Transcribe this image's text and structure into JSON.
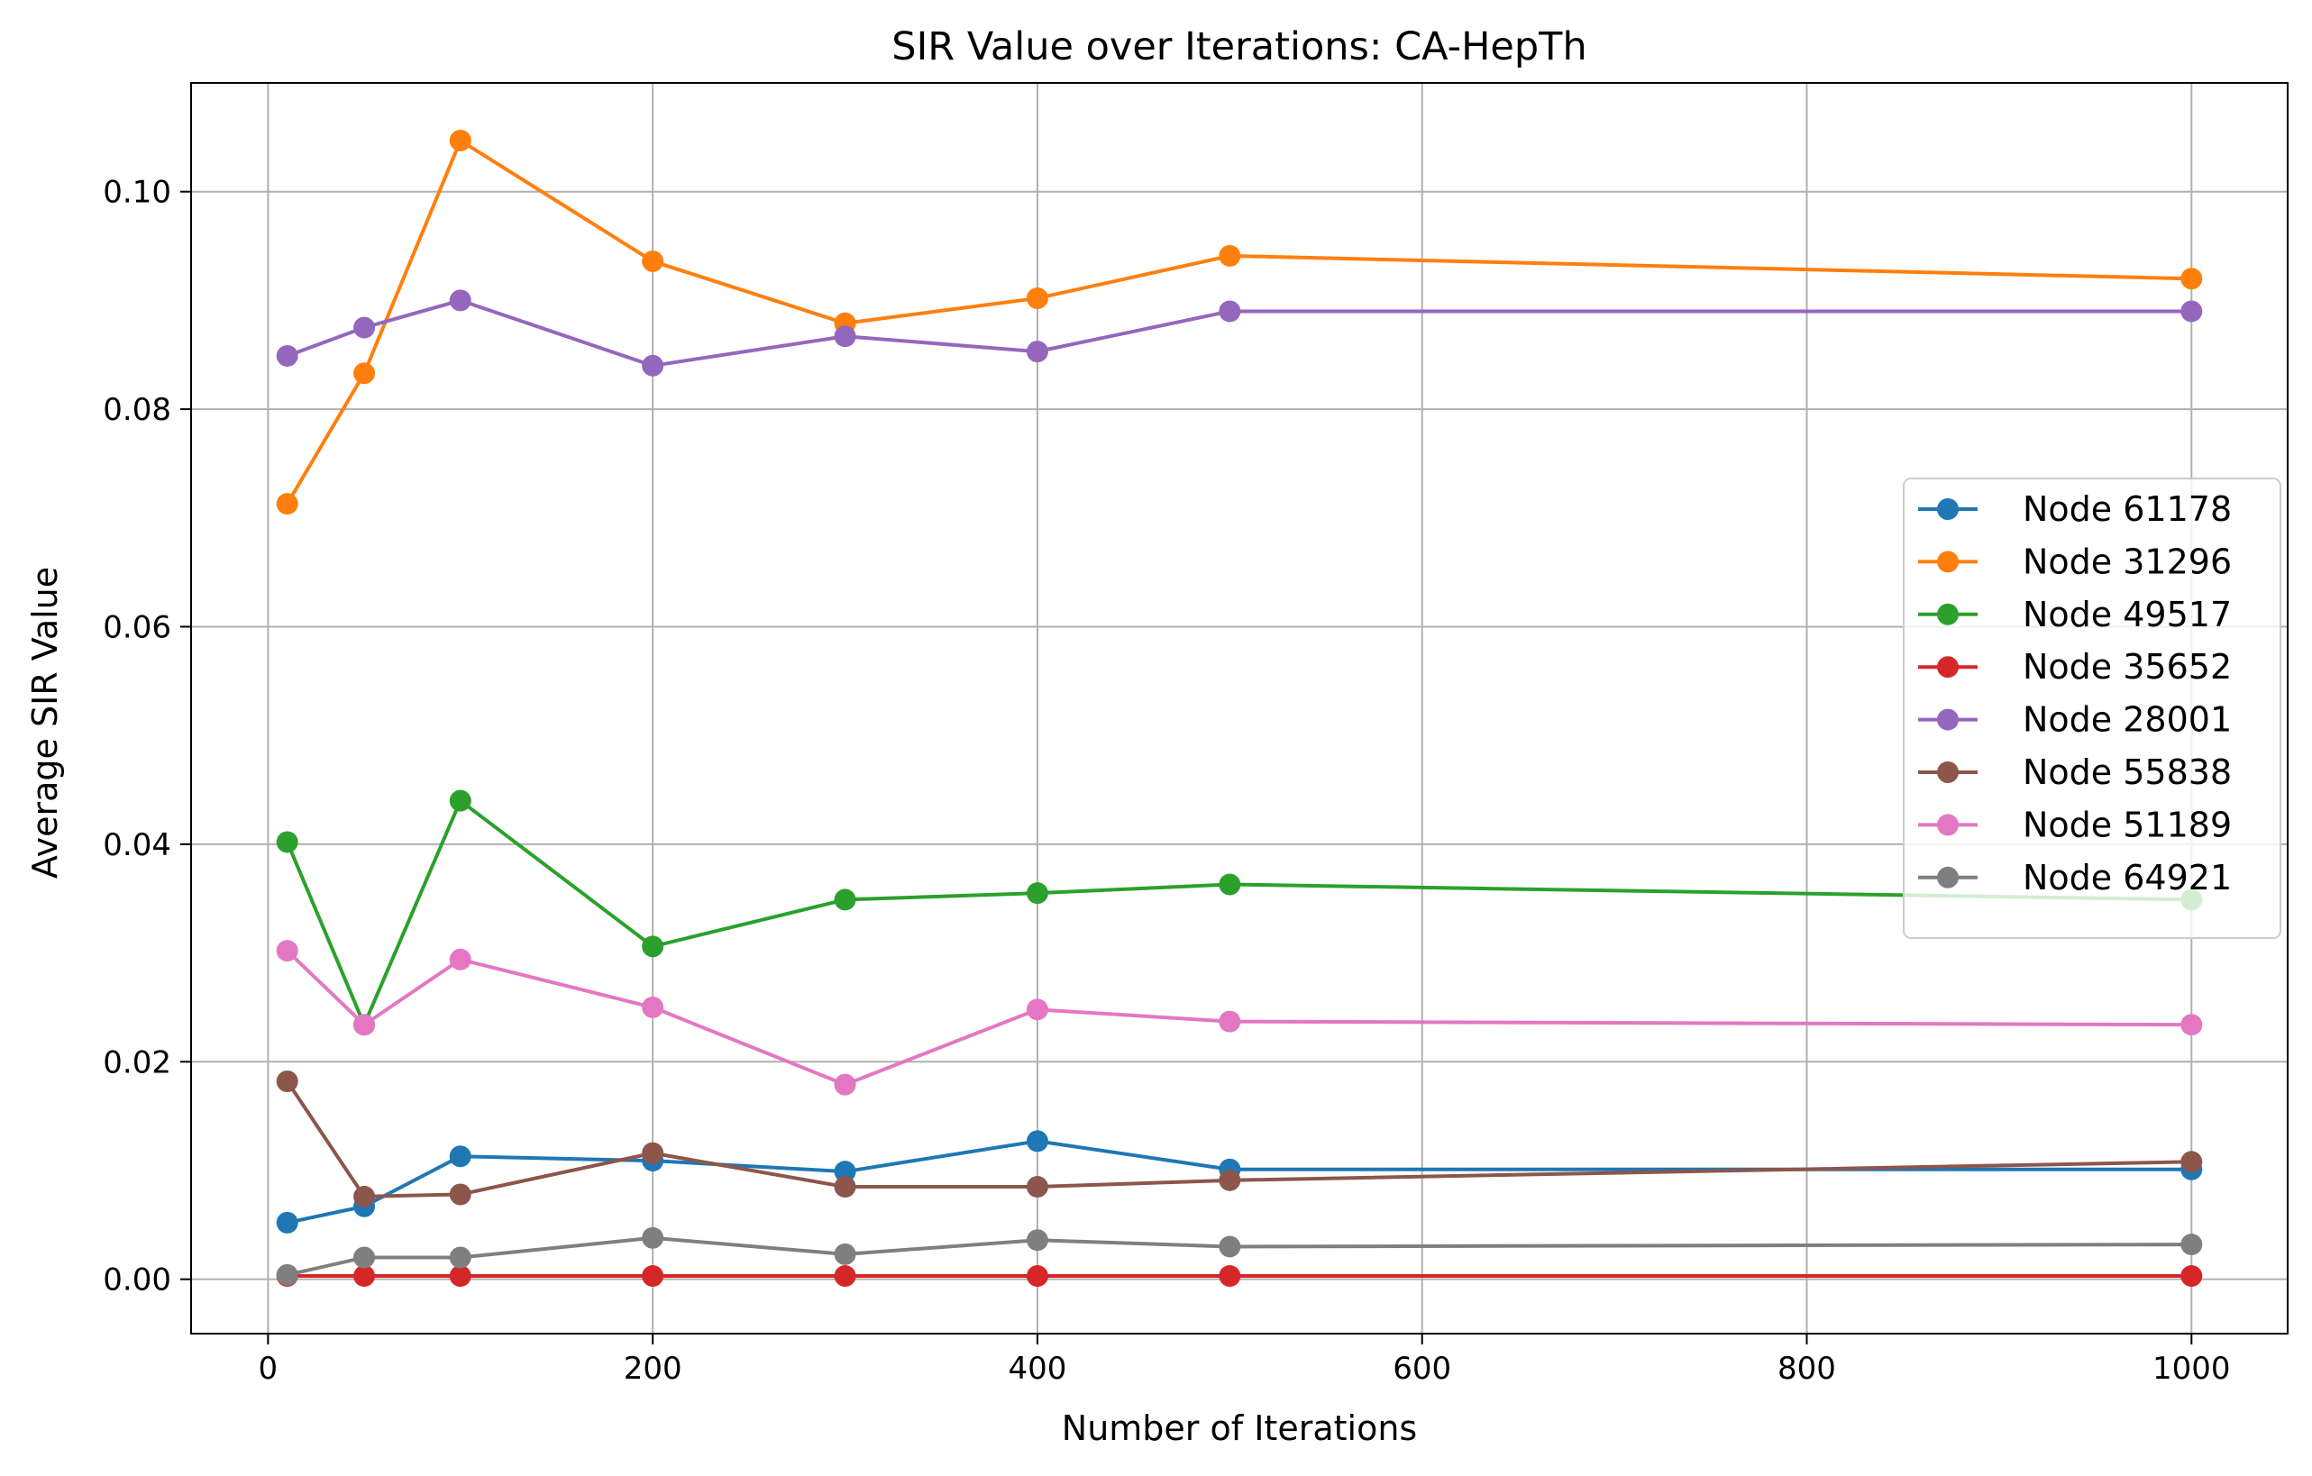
{
  "chart_data": {
    "type": "line",
    "title": "SIR Value over Iterations: CA-HepTh",
    "xlabel": "Number of Iterations",
    "ylabel": "Average SIR Value",
    "xlim": [
      -40,
      1050
    ],
    "ylim": [
      -0.005,
      0.11
    ],
    "xticks": [
      0,
      200,
      400,
      600,
      800,
      1000
    ],
    "xtick_labels": [
      "0",
      "200",
      "400",
      "600",
      "800",
      "1000"
    ],
    "yticks": [
      0.0,
      0.02,
      0.04,
      0.06,
      0.08,
      0.1
    ],
    "ytick_labels": [
      "0.00",
      "0.02",
      "0.04",
      "0.06",
      "0.08",
      "0.10"
    ],
    "grid": true,
    "legend_position": "center-right",
    "x": [
      10,
      50,
      100,
      200,
      300,
      400,
      500,
      1000
    ],
    "series": [
      {
        "name": "Node 61178",
        "color": "#1f77b4",
        "values": [
          0.0052,
          0.0067,
          0.0113,
          0.0109,
          0.0099,
          0.0127,
          0.0101,
          0.0101
        ]
      },
      {
        "name": "Node 31296",
        "color": "#ff7f0e",
        "values": [
          0.0713,
          0.0833,
          0.1047,
          0.0936,
          0.0879,
          0.0902,
          0.0941,
          0.092
        ]
      },
      {
        "name": "Node 49517",
        "color": "#2ca02c",
        "values": [
          0.0402,
          0.0234,
          0.044,
          0.0306,
          0.0349,
          0.0355,
          0.0363,
          0.0349
        ]
      },
      {
        "name": "Node 35652",
        "color": "#d62728",
        "values": [
          0.0003,
          0.0003,
          0.0003,
          0.0003,
          0.0003,
          0.0003,
          0.0003,
          0.0003
        ]
      },
      {
        "name": "Node 28001",
        "color": "#9467bd",
        "values": [
          0.0849,
          0.0875,
          0.09,
          0.084,
          0.0867,
          0.0853,
          0.089,
          0.089
        ]
      },
      {
        "name": "Node 55838",
        "color": "#8c564b",
        "values": [
          0.0182,
          0.0076,
          0.0078,
          0.0116,
          0.0085,
          0.0085,
          0.0091,
          0.0108
        ]
      },
      {
        "name": "Node 51189",
        "color": "#e377c2",
        "values": [
          0.0302,
          0.0234,
          0.0294,
          0.025,
          0.0179,
          0.0248,
          0.0237,
          0.0234
        ]
      },
      {
        "name": "Node 64921",
        "color": "#7f7f7f",
        "values": [
          0.0004,
          0.002,
          0.002,
          0.0038,
          0.0023,
          0.0036,
          0.003,
          0.0032
        ]
      }
    ]
  }
}
